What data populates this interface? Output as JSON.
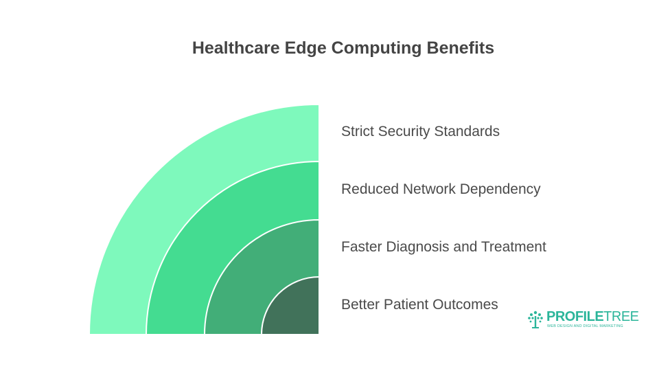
{
  "title": "Healthcare Edge Computing Benefits",
  "layers": [
    {
      "label": "Strict Security Standards",
      "color": "#7ef9bc"
    },
    {
      "label": "Reduced Network Dependency",
      "color": "#44dc91"
    },
    {
      "label": "Faster Diagnosis and Treatment",
      "color": "#42ae78"
    },
    {
      "label": "Better Patient Outcomes",
      "color": "#41725a"
    }
  ],
  "logo": {
    "name_bold": "PROFILE",
    "name_light": "TREE",
    "tagline": "WEB DESIGN AND DIGITAL MARKETING"
  }
}
